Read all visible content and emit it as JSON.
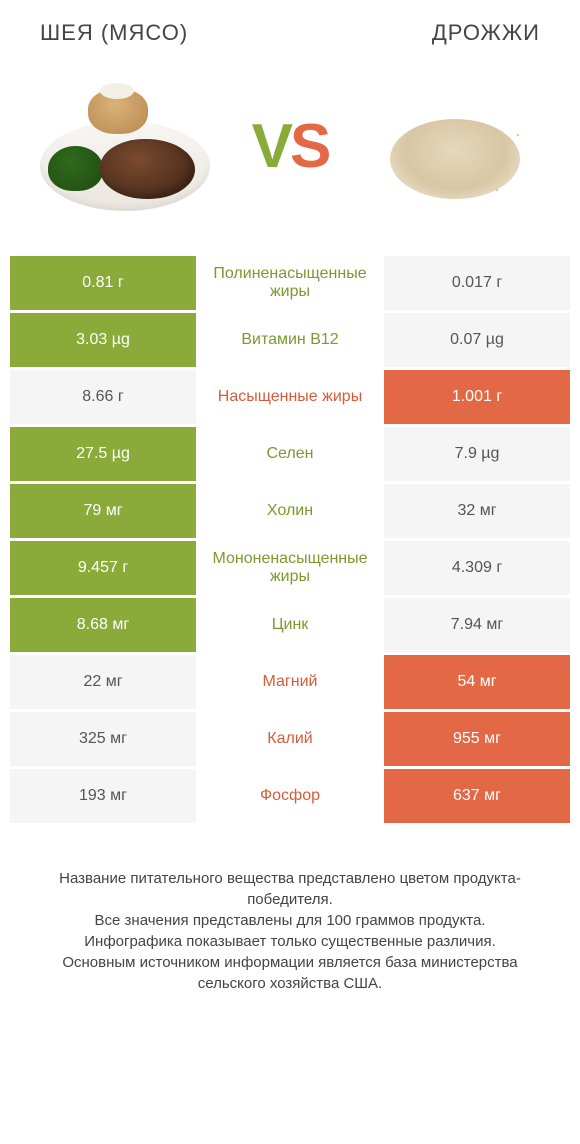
{
  "header": {
    "left_title": "ШЕЯ (МЯСО)",
    "right_title": "ДРОЖЖИ"
  },
  "vs": {
    "v": "V",
    "s": "S"
  },
  "colors": {
    "green": "#8aab3a",
    "orange": "#e36845",
    "lose_bg": "#f5f5f5",
    "text_green": "#7a9a2f",
    "text_orange": "#d65c3b"
  },
  "table": {
    "rows": [
      {
        "left": "0.81 г",
        "label": "Полиненасыщенные жиры",
        "right": "0.017 г",
        "winner": "left"
      },
      {
        "left": "3.03 µg",
        "label": "Витамин B12",
        "right": "0.07 µg",
        "winner": "left"
      },
      {
        "left": "8.66 г",
        "label": "Насыщенные жиры",
        "right": "1.001 г",
        "winner": "right"
      },
      {
        "left": "27.5 µg",
        "label": "Селен",
        "right": "7.9 µg",
        "winner": "left"
      },
      {
        "left": "79 мг",
        "label": "Холин",
        "right": "32 мг",
        "winner": "left"
      },
      {
        "left": "9.457 г",
        "label": "Мононенасыщенные жиры",
        "right": "4.309 г",
        "winner": "left"
      },
      {
        "left": "8.68 мг",
        "label": "Цинк",
        "right": "7.94 мг",
        "winner": "left"
      },
      {
        "left": "22 мг",
        "label": "Магний",
        "right": "54 мг",
        "winner": "right"
      },
      {
        "left": "325 мг",
        "label": "Калий",
        "right": "955 мг",
        "winner": "right"
      },
      {
        "left": "193 мг",
        "label": "Фосфор",
        "right": "637 мг",
        "winner": "right"
      }
    ]
  },
  "footnote": {
    "line1": "Название питательного вещества представлено цветом продукта-победителя.",
    "line2": "Все значения представлены для 100 граммов продукта.",
    "line3": "Инфографика показывает только существенные различия.",
    "line4": "Основным источником информации является база министерства сельского хозяйства США."
  }
}
